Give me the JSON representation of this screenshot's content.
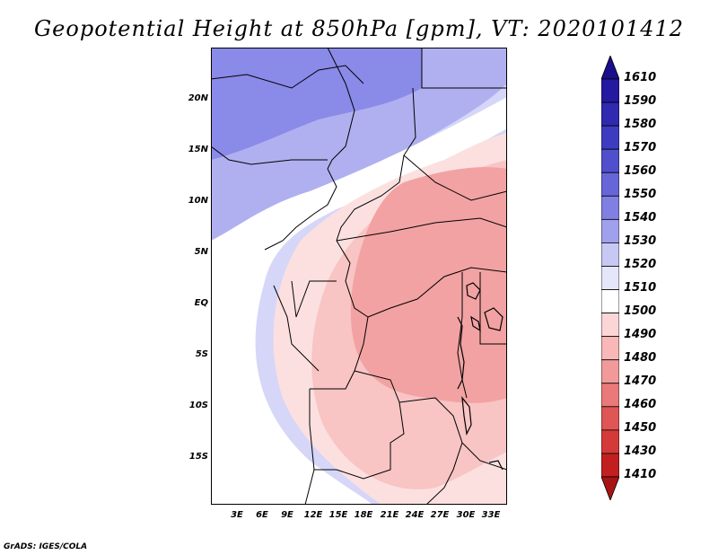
{
  "title": "Geopotential Height at 850hPa [gpm], VT: 2020101412",
  "credit": "GrADS: IGES/COLA",
  "lat_labels": [
    "20N",
    "15N",
    "10N",
    "5N",
    "EQ",
    "5S",
    "10S",
    "15S"
  ],
  "lon_labels": [
    "3E",
    "6E",
    "9E",
    "12E",
    "15E",
    "18E",
    "21E",
    "24E",
    "27E",
    "30E",
    "33E"
  ],
  "legend": {
    "levels": [
      "1610",
      "1590",
      "1580",
      "1570",
      "1560",
      "1550",
      "1540",
      "1530",
      "1520",
      "1510",
      "1500",
      "1490",
      "1480",
      "1470",
      "1460",
      "1450",
      "1430",
      "1410"
    ],
    "colors": [
      "#1a0e8a",
      "#241aa0",
      "#2f2ab0",
      "#3d3cc0",
      "#5050cc",
      "#6666d8",
      "#8080e2",
      "#a0a0ec",
      "#c8c8f4",
      "#e6e6fb",
      "#ffffff",
      "#fcd6d6",
      "#f9b8b8",
      "#f29a9a",
      "#ea7a7a",
      "#e05555",
      "#d43a3a",
      "#c22020",
      "#a81414"
    ]
  },
  "map_colors": {
    "deep_blue": "#8a8ae8",
    "mid_blue": "#b0b0f0",
    "light_blue": "#d6d6f8",
    "white": "#ffffff",
    "light_pink": "#fce0e0",
    "pink": "#f8c4c4",
    "salmon": "#f2a2a2"
  }
}
